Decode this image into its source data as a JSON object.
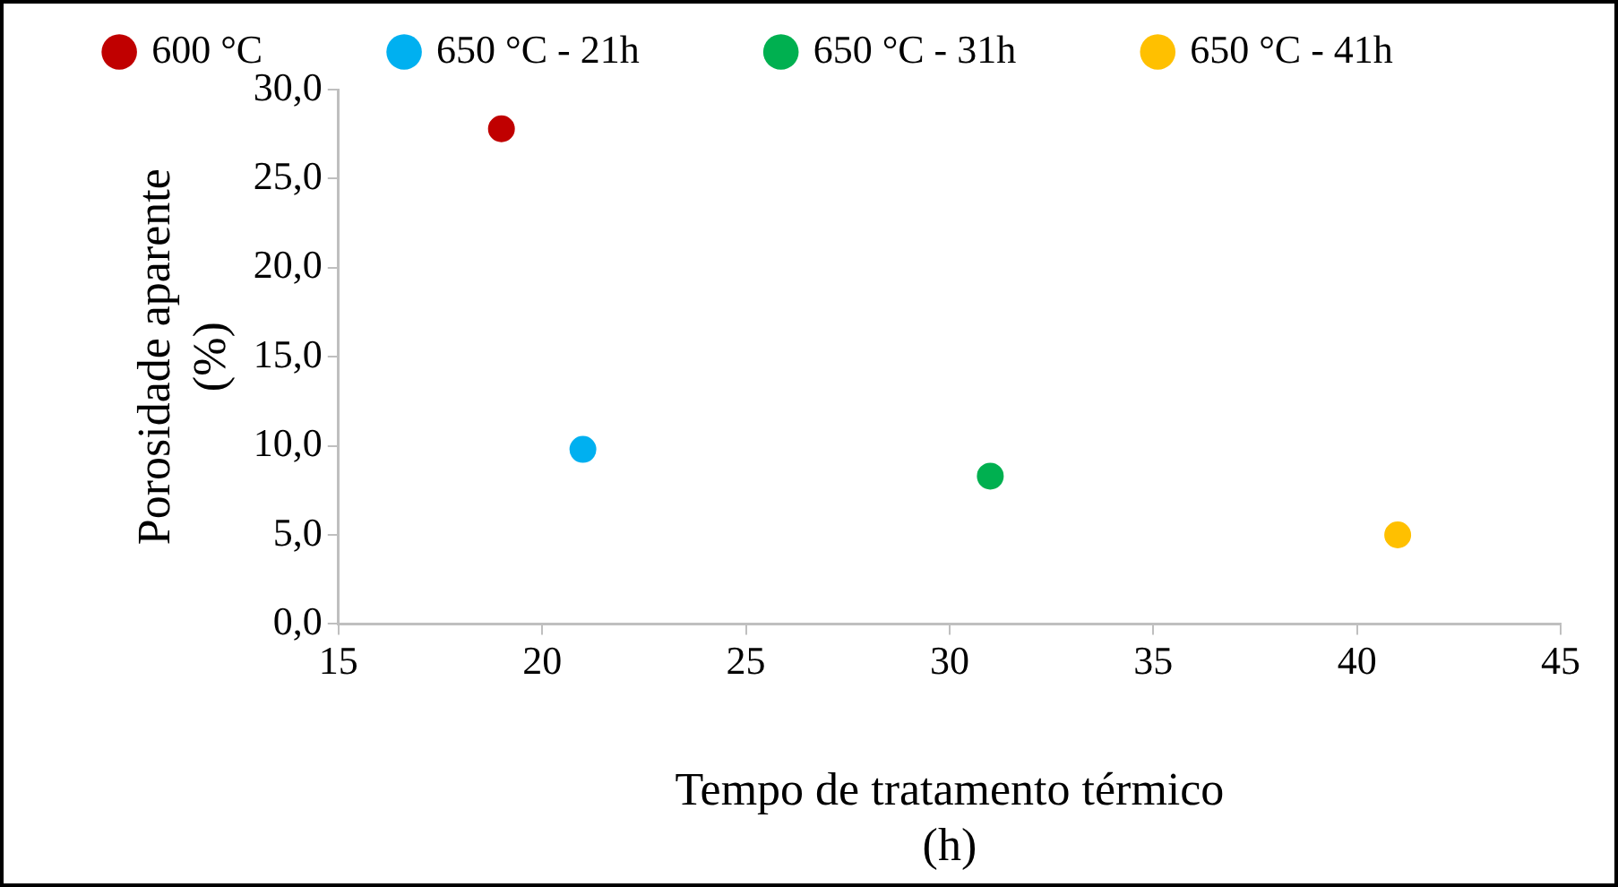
{
  "chart_data": {
    "type": "scatter",
    "xlabel": "Tempo de tratamento térmico (h)",
    "ylabel": "Porosidade aparente (%)",
    "series": [
      {
        "name": "600 °C",
        "color": "#c00000",
        "x": [
          19
        ],
        "values": [
          27.8
        ]
      },
      {
        "name": "650 °C - 21h",
        "color": "#00b0f0",
        "x": [
          21
        ],
        "values": [
          9.8
        ]
      },
      {
        "name": "650 °C - 31h",
        "color": "#00b050",
        "x": [
          31
        ],
        "values": [
          8.3
        ]
      },
      {
        "name": "650 °C - 41h",
        "color": "#ffc000",
        "x": [
          41
        ],
        "values": [
          5.0
        ]
      }
    ],
    "xlim": [
      15,
      45
    ],
    "xticks": [
      15,
      20,
      25,
      30,
      35,
      40,
      45
    ],
    "ylim": [
      0,
      30
    ],
    "yticks": [
      {
        "value": 0,
        "label": "0,0"
      },
      {
        "value": 5,
        "label": "5,0"
      },
      {
        "value": 10,
        "label": "10,0"
      },
      {
        "value": 15,
        "label": "15,0"
      },
      {
        "value": 20,
        "label": "20,0"
      },
      {
        "value": 25,
        "label": "25,0"
      },
      {
        "value": 30,
        "label": "30,0"
      }
    ],
    "grid": false,
    "legend": "top",
    "marker": "circle"
  }
}
